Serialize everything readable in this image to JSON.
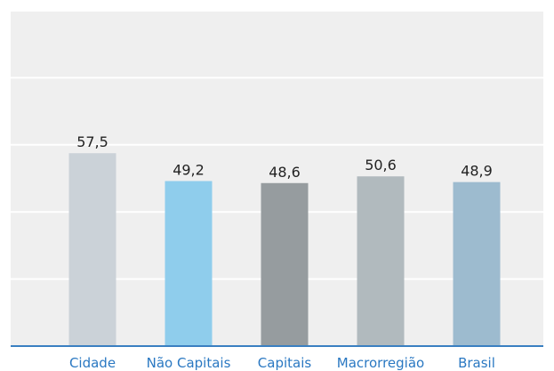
{
  "chart_data": {
    "type": "bar",
    "categories": [
      "Cidade",
      "Não Capitais",
      "Capitais",
      "Macrorregião",
      "Brasil"
    ],
    "values": [
      57.5,
      49.2,
      48.6,
      50.6,
      48.9
    ],
    "value_labels": [
      "57,5",
      "49,2",
      "48,6",
      "50,6",
      "48,9"
    ],
    "ylim": [
      0,
      100
    ],
    "grid": true,
    "colors": [
      "#cbd2d8",
      "#8fcdec",
      "#969c9f",
      "#b1babe",
      "#9dbbcf"
    ],
    "axis_color": "#3a7fc1",
    "label_color": "#2a78c2"
  }
}
